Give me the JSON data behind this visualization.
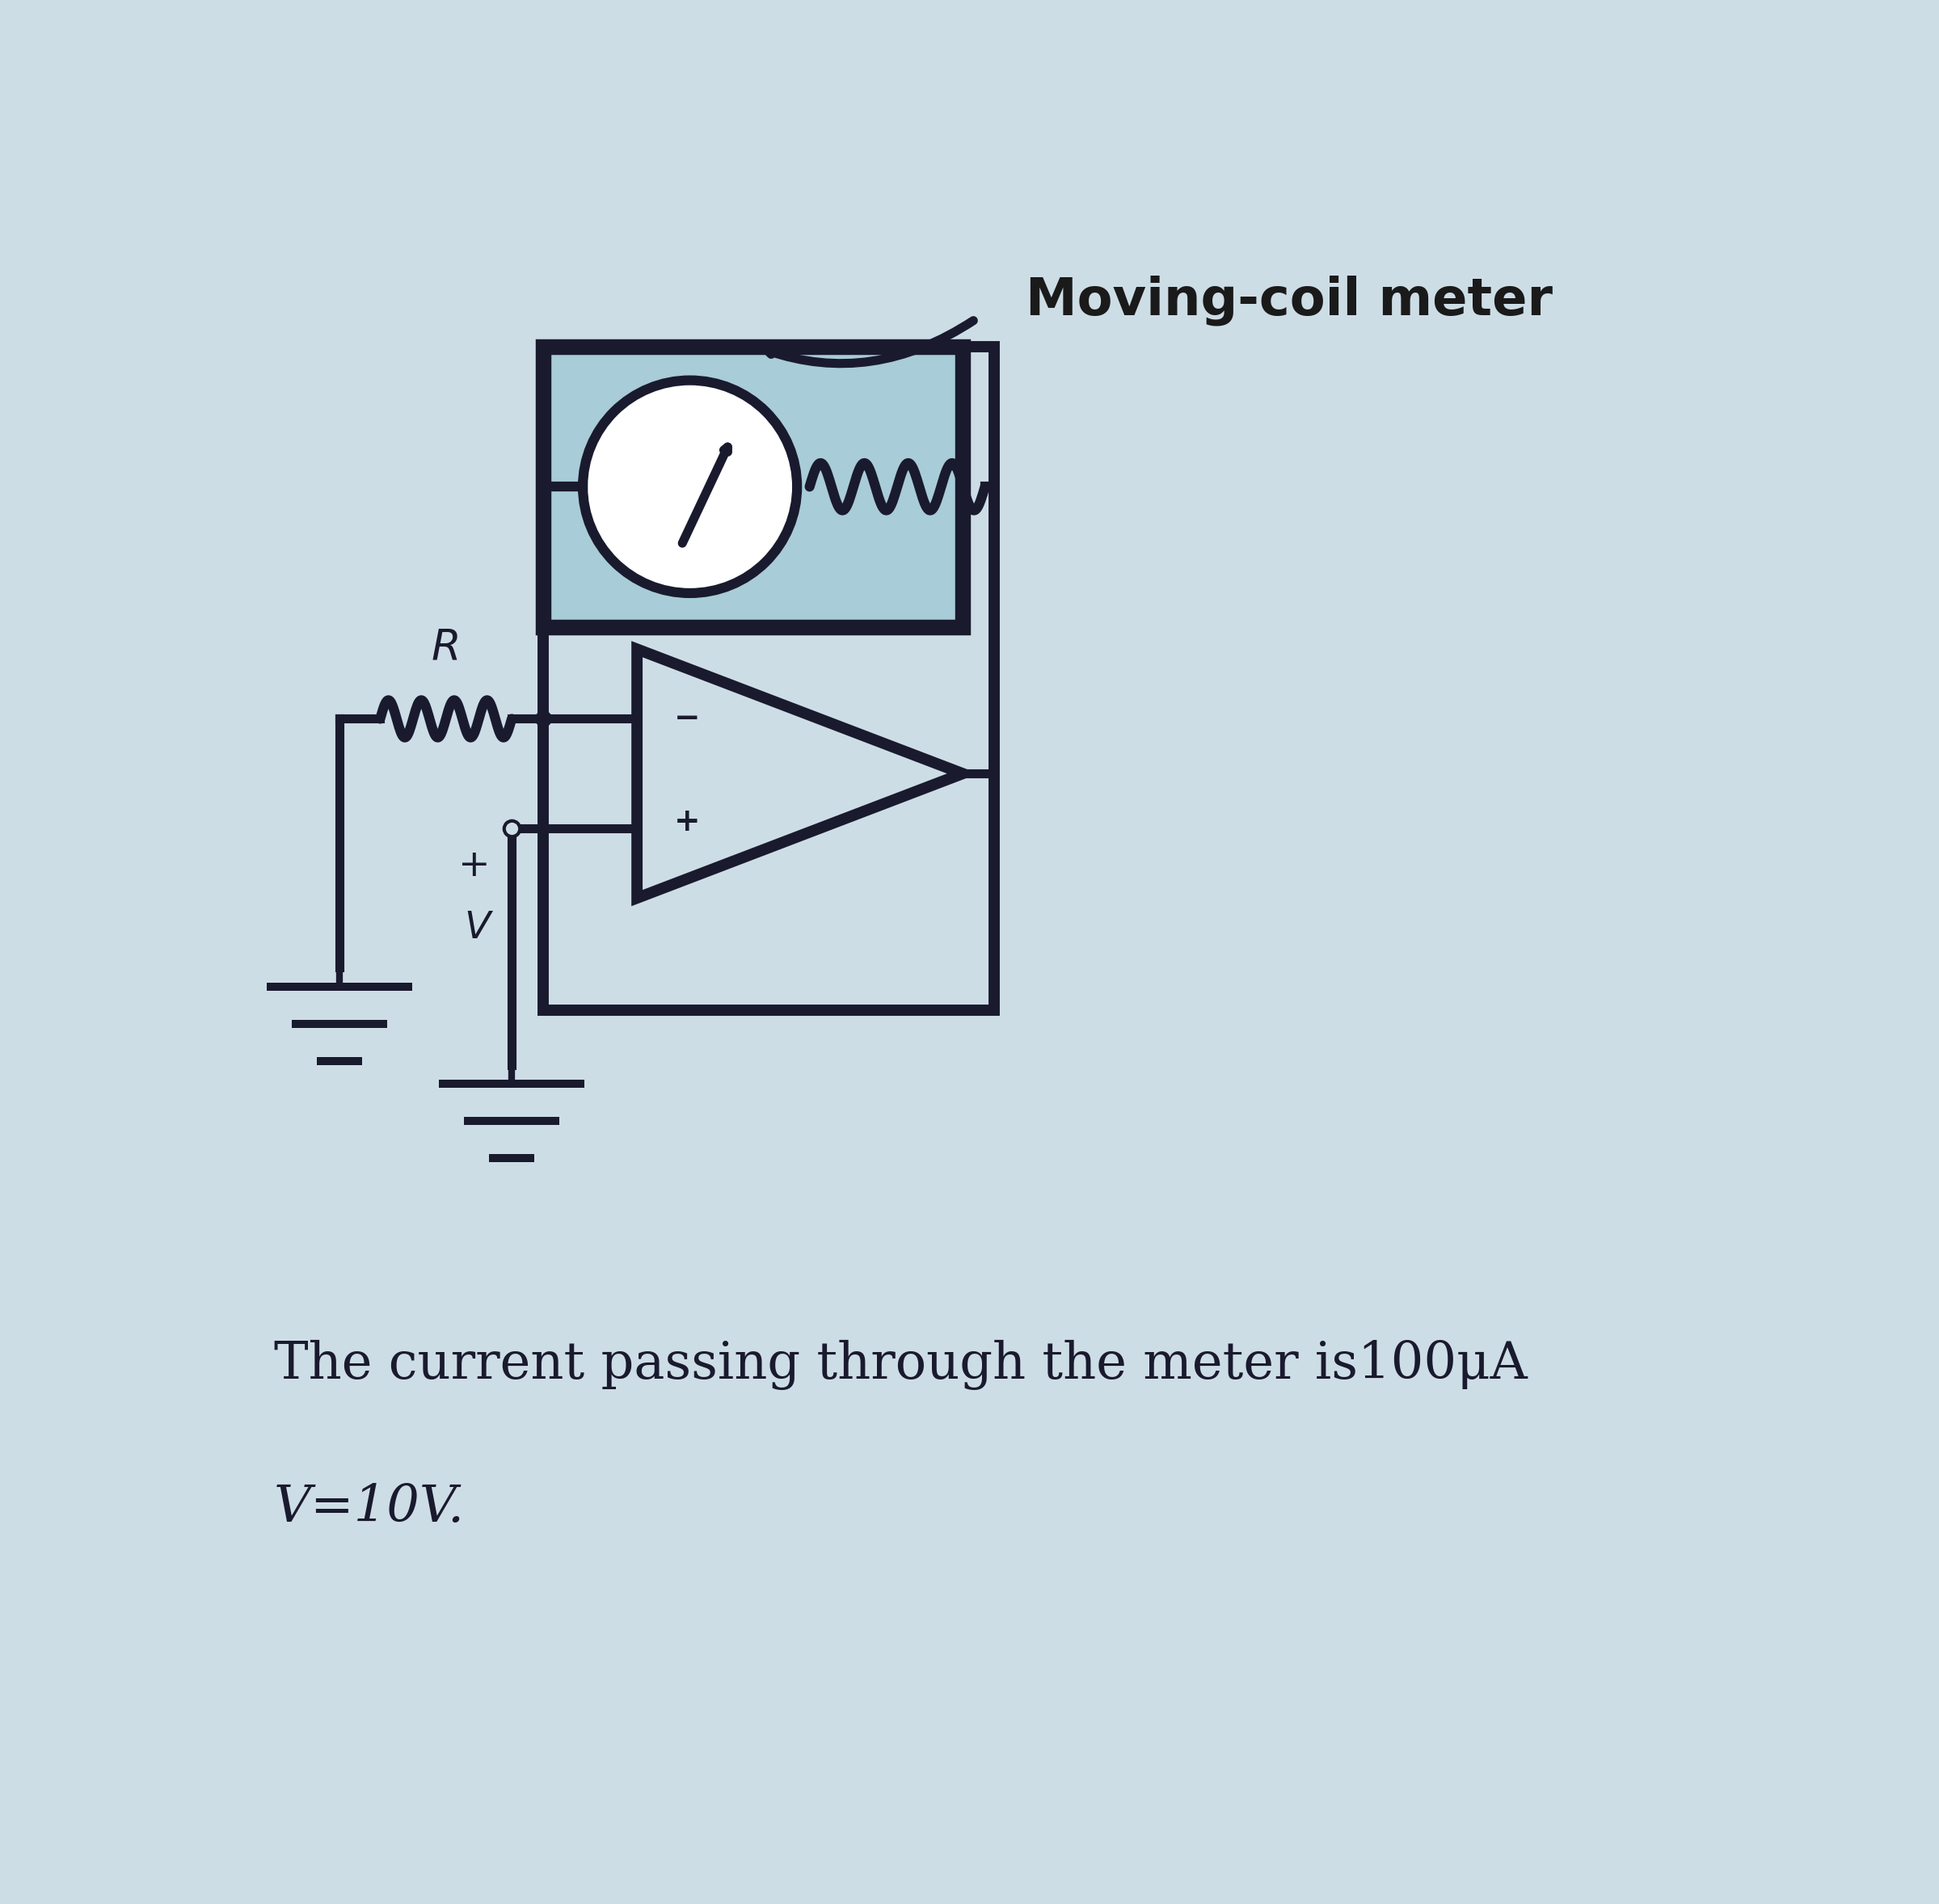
{
  "bg_color": "#cddde6",
  "title": "Moving-coil meter",
  "title_fontsize": 46,
  "circuit_line_color": "#1a1a2e",
  "meter_box_facecolor": "#a8ccd8",
  "meter_box_edgecolor": "#1a1a2e",
  "line_width": 4.0,
  "caption_line1": "The current passing through the meter is100μA",
  "caption_line2": "V=10V.",
  "caption_fontsize": 46,
  "caption_color": "#1a1a2e",
  "title_color": "#1a1a1a"
}
